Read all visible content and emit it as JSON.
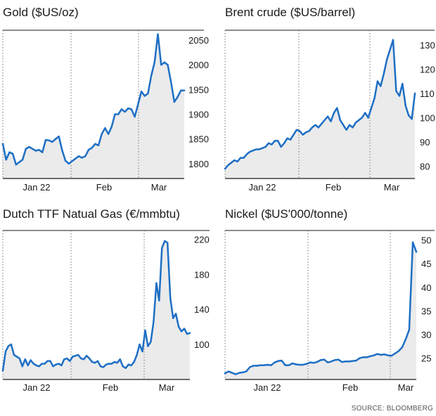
{
  "source": "SOURCE: BLOOMBERG",
  "colors": {
    "line": "#1e6fc5",
    "area": "#ebebeb",
    "rule": "#1a1a1a",
    "dots": "#777777"
  },
  "chart_data": [
    {
      "type": "area",
      "title": "Gold ($US/oz)",
      "x_tick_labels": [
        "Jan 22",
        "Feb",
        "Mar"
      ],
      "y_ticks": [
        1800,
        1850,
        1900,
        1950,
        2000,
        2050
      ],
      "ylim": [
        1770,
        2070
      ],
      "series": [
        {
          "values": [
            1840,
            1808,
            1823,
            1820,
            1798,
            1803,
            1808,
            1830,
            1834,
            1830,
            1826,
            1828,
            1823,
            1848,
            1847,
            1844,
            1850,
            1855,
            1827,
            1806,
            1800,
            1805,
            1810,
            1815,
            1812,
            1815,
            1828,
            1832,
            1840,
            1837,
            1860,
            1872,
            1860,
            1875,
            1900,
            1900,
            1910,
            1905,
            1912,
            1910,
            1895,
            1920,
            1946,
            1937,
            1942,
            1978,
            2005,
            2062,
            2000,
            2005,
            2000,
            1965,
            1925,
            1935,
            1948,
            1948
          ]
        }
      ],
      "grid": false
    },
    {
      "type": "area",
      "title": "Brent crude ($US/barrel)",
      "x_tick_labels": [
        "Jan 22",
        "Feb",
        "Mar"
      ],
      "y_ticks": [
        80,
        90,
        100,
        110,
        120,
        130
      ],
      "ylim": [
        75,
        136
      ],
      "series": [
        {
          "values": [
            79,
            80.5,
            81.5,
            82.5,
            82,
            83.5,
            83.5,
            85,
            86,
            86.5,
            87,
            87,
            87.5,
            88,
            89.5,
            89,
            90.5,
            90.5,
            88,
            89.5,
            91.5,
            91,
            93,
            95,
            94.5,
            93,
            94,
            94.5,
            96,
            97,
            96,
            97.5,
            99,
            100.5,
            98.5,
            102,
            104,
            99,
            97,
            95,
            97,
            96,
            98,
            99,
            100,
            102,
            100,
            104,
            108,
            115,
            113,
            118,
            124,
            128,
            132,
            111,
            109,
            114,
            105,
            101,
            99.5,
            110
          ]
        }
      ],
      "grid": false
    },
    {
      "type": "area",
      "title": "Dutch TTF Natual Gas (€/mmbtu)",
      "x_tick_labels": [
        "Jan 22",
        "Feb",
        "Mar"
      ],
      "y_ticks": [
        100,
        140,
        180,
        220
      ],
      "ylim": [
        60,
        230
      ],
      "series": [
        {
          "values": [
            70,
            92,
            98,
            100,
            88,
            86,
            84,
            75,
            83,
            76,
            82,
            78,
            76,
            75,
            78,
            78,
            81,
            81,
            75,
            77,
            78,
            76,
            83,
            84,
            81,
            86,
            87,
            88,
            84,
            83,
            87,
            84,
            80,
            79,
            81,
            75,
            74,
            77,
            78,
            78,
            80,
            79,
            83,
            75,
            73,
            77,
            76,
            80,
            88,
            100,
            92,
            116,
            98,
            103,
            126,
            170,
            150,
            210,
            218,
            216,
            153,
            130,
            135,
            120,
            115,
            118,
            112,
            113
          ]
        }
      ],
      "grid": false
    },
    {
      "type": "area",
      "title": "Nickel ($US'000/tonne)",
      "x_tick_labels": [
        "Jan 22",
        "Feb",
        "Mar"
      ],
      "y_ticks": [
        25,
        30,
        35,
        40,
        45,
        50
      ],
      "ylim": [
        20.5,
        52
      ],
      "series": [
        {
          "values": [
            21.8,
            22.2,
            21.9,
            21.6,
            21.9,
            22,
            22.2,
            23.1,
            23.4,
            23.4,
            23.5,
            23.5,
            23.6,
            23.5,
            24.1,
            24.4,
            24.5,
            23.5,
            23.5,
            23.9,
            23.7,
            23.6,
            23.6,
            23.8,
            24.1,
            24,
            24.2,
            24.6,
            24.7,
            24.1,
            24.3,
            24.6,
            24.7,
            24.2,
            24.3,
            24.3,
            24.4,
            24.5,
            25,
            25.2,
            25.2,
            25.4,
            25.6,
            25.9,
            25.7,
            25.8,
            25.6,
            25.5,
            26,
            26.5,
            27.3,
            29,
            31,
            49.5,
            47.5
          ]
        }
      ],
      "grid": false
    }
  ]
}
